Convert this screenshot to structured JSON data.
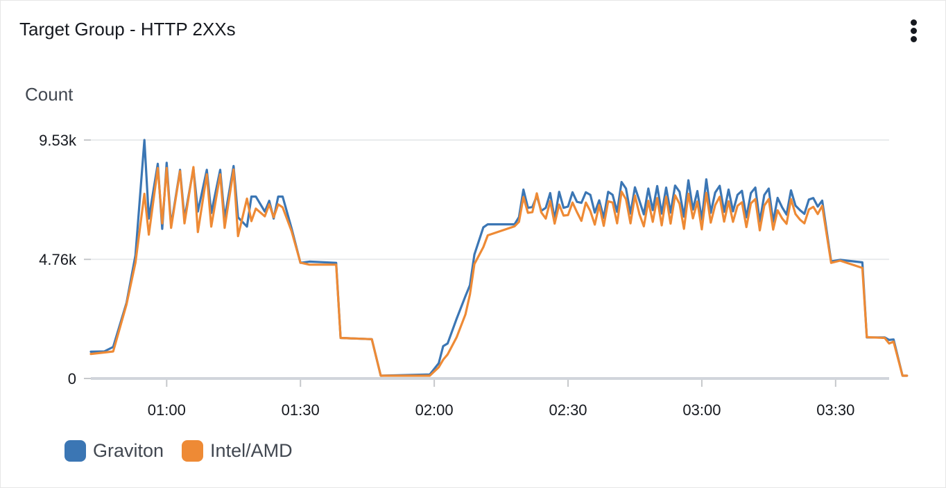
{
  "widget": {
    "title": "Target Group - HTTP 2XXs",
    "menu_icon": "vertical-ellipsis-icon"
  },
  "chart_data": {
    "type": "line",
    "title": "Target Group - HTTP 2XXs",
    "ylabel": "Count",
    "xlabel": "",
    "ylim": [
      0,
      9530
    ],
    "xlim": [
      "00:43",
      "03:42"
    ],
    "grid": true,
    "legend_position": "bottom-left",
    "y_ticks": [
      {
        "value": 0,
        "label": "0"
      },
      {
        "value": 4760,
        "label": "4.76k"
      },
      {
        "value": 9530,
        "label": "9.53k"
      }
    ],
    "x_ticks": [
      "01:00",
      "01:30",
      "02:00",
      "02:30",
      "03:00",
      "03:30"
    ],
    "series": [
      {
        "name": "Graviton",
        "color": "#3b76b4",
        "points": [
          [
            "00:43",
            1070
          ],
          [
            "00:46",
            1080
          ],
          [
            "00:48",
            1260
          ],
          [
            "00:51",
            3020
          ],
          [
            "00:53",
            4920
          ],
          [
            "00:55",
            9530
          ],
          [
            "00:56",
            6390
          ],
          [
            "00:58",
            8580
          ],
          [
            "00:59",
            5980
          ],
          [
            "01:00",
            8620
          ],
          [
            "01:01",
            6110
          ],
          [
            "01:03",
            8340
          ],
          [
            "01:04",
            6390
          ],
          [
            "01:06",
            8390
          ],
          [
            "01:07",
            6670
          ],
          [
            "01:09",
            8340
          ],
          [
            "01:10",
            6610
          ],
          [
            "01:12",
            8340
          ],
          [
            "01:13",
            6390
          ],
          [
            "01:15",
            8490
          ],
          [
            "01:16",
            6440
          ],
          [
            "01:18",
            6070
          ],
          [
            "01:19",
            7270
          ],
          [
            "01:20",
            7270
          ],
          [
            "01:22",
            6670
          ],
          [
            "01:23",
            7100
          ],
          [
            "01:24",
            6390
          ],
          [
            "01:25",
            7270
          ],
          [
            "01:26",
            7270
          ],
          [
            "01:28",
            6000
          ],
          [
            "01:30",
            4620
          ],
          [
            "01:32",
            4670
          ],
          [
            "01:38",
            4620
          ],
          [
            "01:39",
            1620
          ],
          [
            "01:46",
            1570
          ],
          [
            "01:48",
            110
          ],
          [
            "01:59",
            160
          ],
          [
            "02:01",
            610
          ],
          [
            "02:02",
            1290
          ],
          [
            "02:03",
            1400
          ],
          [
            "02:05",
            2380
          ],
          [
            "02:07",
            3290
          ],
          [
            "02:08",
            3730
          ],
          [
            "02:09",
            4950
          ],
          [
            "02:11",
            6040
          ],
          [
            "02:12",
            6160
          ],
          [
            "02:18",
            6160
          ],
          [
            "02:19",
            6450
          ],
          [
            "02:20",
            7550
          ],
          [
            "02:21",
            6820
          ],
          [
            "02:22",
            6850
          ],
          [
            "02:23",
            7300
          ],
          [
            "02:24",
            6700
          ],
          [
            "02:25",
            6820
          ],
          [
            "02:26",
            7410
          ],
          [
            "02:27",
            6370
          ],
          [
            "02:28",
            7460
          ],
          [
            "02:29",
            6820
          ],
          [
            "02:30",
            6870
          ],
          [
            "02:31",
            7440
          ],
          [
            "02:32",
            7060
          ],
          [
            "02:33",
            7020
          ],
          [
            "02:34",
            7440
          ],
          [
            "02:35",
            7340
          ],
          [
            "02:36",
            6630
          ],
          [
            "02:37",
            7120
          ],
          [
            "02:38",
            6420
          ],
          [
            "02:39",
            7460
          ],
          [
            "02:40",
            7340
          ],
          [
            "02:41",
            6660
          ],
          [
            "02:42",
            7850
          ],
          [
            "02:43",
            7590
          ],
          [
            "02:44",
            6590
          ],
          [
            "02:45",
            7640
          ],
          [
            "02:46",
            7110
          ],
          [
            "02:47",
            6560
          ],
          [
            "02:48",
            7590
          ],
          [
            "02:49",
            6730
          ],
          [
            "02:50",
            7690
          ],
          [
            "02:51",
            6590
          ],
          [
            "02:52",
            7630
          ],
          [
            "02:53",
            6630
          ],
          [
            "02:54",
            7710
          ],
          [
            "02:55",
            7460
          ],
          [
            "02:56",
            6470
          ],
          [
            "02:57",
            7920
          ],
          [
            "02:58",
            6750
          ],
          [
            "02:59",
            7490
          ],
          [
            "03:00",
            6350
          ],
          [
            "03:01",
            7960
          ],
          [
            "03:02",
            6620
          ],
          [
            "03:03",
            7430
          ],
          [
            "03:04",
            7700
          ],
          [
            "03:05",
            6660
          ],
          [
            "03:06",
            7550
          ],
          [
            "03:07",
            6680
          ],
          [
            "03:08",
            7340
          ],
          [
            "03:09",
            7500
          ],
          [
            "03:10",
            6440
          ],
          [
            "03:11",
            7410
          ],
          [
            "03:12",
            7630
          ],
          [
            "03:13",
            6270
          ],
          [
            "03:14",
            7330
          ],
          [
            "03:15",
            7590
          ],
          [
            "03:16",
            6260
          ],
          [
            "03:17",
            7220
          ],
          [
            "03:18",
            6840
          ],
          [
            "03:19",
            6550
          ],
          [
            "03:20",
            7520
          ],
          [
            "03:21",
            6910
          ],
          [
            "03:22",
            6730
          ],
          [
            "03:23",
            6580
          ],
          [
            "03:24",
            7150
          ],
          [
            "03:25",
            7210
          ],
          [
            "03:26",
            6870
          ],
          [
            "03:27",
            7110
          ],
          [
            "03:29",
            4680
          ],
          [
            "03:31",
            4740
          ],
          [
            "03:36",
            4640
          ],
          [
            "03:37",
            1640
          ],
          [
            "03:41",
            1640
          ],
          [
            "03:42",
            1540
          ],
          [
            "03:43",
            1560
          ],
          [
            "03:45",
            110
          ],
          [
            "03:46",
            110
          ]
        ]
      },
      {
        "name": "Intel/AMD",
        "color": "#ee8a35",
        "points": [
          [
            "00:43",
            980
          ],
          [
            "00:46",
            1040
          ],
          [
            "00:48",
            1080
          ],
          [
            "00:51",
            2960
          ],
          [
            "00:53",
            4630
          ],
          [
            "00:55",
            7380
          ],
          [
            "00:56",
            5750
          ],
          [
            "00:58",
            8410
          ],
          [
            "00:59",
            6200
          ],
          [
            "01:00",
            8410
          ],
          [
            "01:01",
            6020
          ],
          [
            "01:03",
            8290
          ],
          [
            "01:04",
            6200
          ],
          [
            "01:06",
            8450
          ],
          [
            "01:07",
            5850
          ],
          [
            "01:09",
            8160
          ],
          [
            "01:10",
            6070
          ],
          [
            "01:12",
            8160
          ],
          [
            "01:13",
            6020
          ],
          [
            "01:15",
            8350
          ],
          [
            "01:16",
            5690
          ],
          [
            "01:18",
            7190
          ],
          [
            "01:19",
            6290
          ],
          [
            "01:20",
            6790
          ],
          [
            "01:22",
            6480
          ],
          [
            "01:23",
            6960
          ],
          [
            "01:24",
            6440
          ],
          [
            "01:25",
            6960
          ],
          [
            "01:26",
            6840
          ],
          [
            "01:28",
            5890
          ],
          [
            "01:30",
            4630
          ],
          [
            "01:32",
            4550
          ],
          [
            "01:38",
            4550
          ],
          [
            "01:39",
            1620
          ],
          [
            "01:46",
            1570
          ],
          [
            "01:48",
            110
          ],
          [
            "01:59",
            110
          ],
          [
            "02:01",
            450
          ],
          [
            "02:02",
            750
          ],
          [
            "02:03",
            960
          ],
          [
            "02:05",
            1640
          ],
          [
            "02:07",
            2560
          ],
          [
            "02:08",
            3360
          ],
          [
            "02:09",
            4570
          ],
          [
            "02:11",
            5250
          ],
          [
            "02:12",
            5720
          ],
          [
            "02:18",
            6080
          ],
          [
            "02:19",
            6260
          ],
          [
            "02:20",
            7250
          ],
          [
            "02:21",
            6620
          ],
          [
            "02:22",
            6650
          ],
          [
            "02:23",
            7400
          ],
          [
            "02:24",
            6640
          ],
          [
            "02:25",
            6390
          ],
          [
            "02:26",
            7090
          ],
          [
            "02:27",
            6190
          ],
          [
            "02:28",
            6950
          ],
          [
            "02:29",
            6510
          ],
          [
            "02:30",
            6530
          ],
          [
            "02:31",
            7030
          ],
          [
            "02:32",
            6650
          ],
          [
            "02:33",
            6300
          ],
          [
            "02:34",
            7030
          ],
          [
            "02:35",
            6690
          ],
          [
            "02:36",
            6150
          ],
          [
            "02:37",
            6930
          ],
          [
            "02:38",
            6100
          ],
          [
            "02:39",
            7080
          ],
          [
            "02:40",
            7030
          ],
          [
            "02:41",
            6200
          ],
          [
            "02:42",
            7470
          ],
          [
            "02:43",
            7160
          ],
          [
            "02:44",
            6200
          ],
          [
            "02:45",
            7310
          ],
          [
            "02:46",
            6570
          ],
          [
            "02:47",
            6080
          ],
          [
            "02:48",
            7100
          ],
          [
            "02:49",
            6260
          ],
          [
            "02:50",
            7210
          ],
          [
            "02:51",
            6120
          ],
          [
            "02:52",
            7260
          ],
          [
            "02:53",
            6190
          ],
          [
            "02:54",
            7320
          ],
          [
            "02:55",
            6980
          ],
          [
            "02:56",
            5980
          ],
          [
            "02:57",
            7380
          ],
          [
            "02:58",
            6400
          ],
          [
            "02:59",
            7070
          ],
          [
            "03:00",
            5960
          ],
          [
            "03:01",
            7420
          ],
          [
            "03:02",
            6230
          ],
          [
            "03:03",
            6930
          ],
          [
            "03:04",
            7260
          ],
          [
            "03:05",
            6270
          ],
          [
            "03:06",
            7080
          ],
          [
            "03:07",
            6260
          ],
          [
            "03:08",
            6900
          ],
          [
            "03:09",
            7040
          ],
          [
            "03:10",
            6050
          ],
          [
            "03:11",
            7000
          ],
          [
            "03:12",
            7170
          ],
          [
            "03:13",
            5920
          ],
          [
            "03:14",
            6910
          ],
          [
            "03:15",
            7170
          ],
          [
            "03:16",
            5950
          ],
          [
            "03:17",
            6720
          ],
          [
            "03:18",
            6400
          ],
          [
            "03:19",
            6180
          ],
          [
            "03:20",
            7170
          ],
          [
            "03:21",
            6570
          ],
          [
            "03:22",
            6350
          ],
          [
            "03:23",
            6200
          ],
          [
            "03:24",
            6750
          ],
          [
            "03:25",
            6860
          ],
          [
            "03:26",
            6570
          ],
          [
            "03:27",
            6900
          ],
          [
            "03:29",
            4620
          ],
          [
            "03:31",
            4710
          ],
          [
            "03:36",
            4420
          ],
          [
            "03:37",
            1650
          ],
          [
            "03:41",
            1620
          ],
          [
            "03:42",
            1400
          ],
          [
            "03:43",
            1470
          ],
          [
            "03:45",
            110
          ],
          [
            "03:46",
            110
          ]
        ]
      }
    ]
  }
}
